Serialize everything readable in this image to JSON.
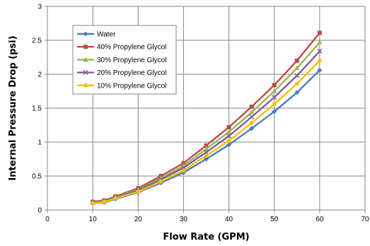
{
  "chart_data": {
    "type": "line",
    "title": "",
    "xlabel": "Flow Rate (GPM)",
    "ylabel": "Internal Pressure Drop (psi)",
    "xlim": [
      0,
      70
    ],
    "ylim": [
      0,
      3
    ],
    "xticks": [
      "0",
      "10",
      "20",
      "30",
      "40",
      "50",
      "60",
      "70"
    ],
    "yticks": [
      "0",
      "0.5",
      "1",
      "1.5",
      "2",
      "2.5",
      "3"
    ],
    "xtick_values": [
      0,
      10,
      20,
      30,
      40,
      50,
      60,
      70
    ],
    "ytick_values": [
      0,
      0.5,
      1,
      1.5,
      2,
      2.5,
      3
    ],
    "grid": "vertical and horizontal major gridlines",
    "legend_position": "upper-left inside plot",
    "x": [
      10,
      12.5,
      15,
      20,
      25,
      30,
      35,
      40,
      45,
      50,
      55,
      60
    ],
    "series": [
      {
        "name": "Water",
        "color": "#4a7ebb",
        "marker": "diamond",
        "values": [
          0.1,
          0.11,
          0.16,
          0.26,
          0.4,
          0.55,
          0.75,
          0.96,
          1.2,
          1.45,
          1.73,
          2.06
        ]
      },
      {
        "name": "40% Propylene Glycol",
        "color": "#be4b48",
        "marker": "square",
        "values": [
          0.12,
          0.14,
          0.2,
          0.32,
          0.5,
          0.69,
          0.95,
          1.22,
          1.52,
          1.84,
          2.2,
          2.61
        ]
      },
      {
        "name": "30% Propylene Glycol",
        "color": "#98b954",
        "marker": "triangle",
        "values": [
          0.11,
          0.13,
          0.19,
          0.3,
          0.47,
          0.65,
          0.9,
          1.15,
          1.44,
          1.75,
          2.09,
          2.47
        ]
      },
      {
        "name": "20% Propylene Glycol",
        "color": "#7d60a0",
        "marker": "x",
        "values": [
          0.11,
          0.13,
          0.18,
          0.29,
          0.45,
          0.62,
          0.85,
          1.09,
          1.37,
          1.66,
          1.98,
          2.34
        ]
      },
      {
        "name": "10% Propylene Glycol",
        "color": "#f5c00e",
        "marker": "circle",
        "values": [
          0.1,
          0.12,
          0.17,
          0.27,
          0.42,
          0.58,
          0.8,
          1.02,
          1.28,
          1.56,
          1.86,
          2.2
        ]
      }
    ]
  }
}
